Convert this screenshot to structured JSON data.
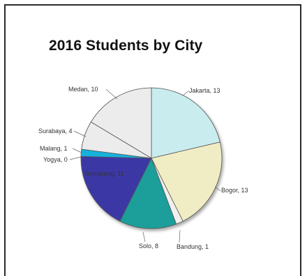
{
  "chart_data": {
    "type": "pie",
    "title": "2016 Students by City",
    "categories": [
      "Jakarta",
      "Bogor",
      "Bandung",
      "Solo",
      "Semarang",
      "Yogya",
      "Malang",
      "Surabaya",
      "Medan"
    ],
    "values": [
      13,
      13,
      1,
      8,
      11,
      0,
      1,
      4,
      10
    ],
    "colors": [
      "#c9ecef",
      "#f0ecc4",
      "#f0f0ee",
      "#1a9e9a",
      "#3a37a6",
      "#e6e6e6",
      "#13b2dc",
      "#ececec",
      "#ececec"
    ],
    "legend": "none",
    "data_labels": [
      "Jakarta, 13",
      "Bogor, 13",
      "Bandung, 1",
      "Solo, 8",
      "Semarang, 11",
      "Yogya, 0",
      "Malang, 1",
      "Surabaya, 4",
      "Medan, 10"
    ]
  }
}
